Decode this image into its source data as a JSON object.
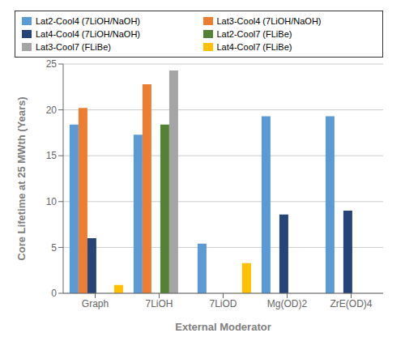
{
  "chart_data": {
    "type": "bar",
    "categories": [
      "Graph",
      "7LiOH",
      "7LiOD",
      "Mg(OD)2",
      "ZrE(OD)4"
    ],
    "series": [
      {
        "name": "Lat2-Cool4 (7LiOH/NaOH)",
        "color": "#5B9BD5",
        "values": [
          18.4,
          17.3,
          5.4,
          19.3,
          19.3
        ]
      },
      {
        "name": "Lat3-Cool4 (7LiOH/NaOH)",
        "color": "#ED7D31",
        "values": [
          20.2,
          22.8,
          null,
          null,
          null
        ]
      },
      {
        "name": "Lat4-Cool4 (7LiOH/NaOH)",
        "color": "#264478",
        "values": [
          6.0,
          null,
          null,
          8.6,
          9.0
        ]
      },
      {
        "name": "Lat2-Cool7 (FLiBe)",
        "color": "#548235",
        "values": [
          null,
          18.4,
          null,
          null,
          null
        ]
      },
      {
        "name": "Lat3-Cool7 (FLiBe)",
        "color": "#A5A5A5",
        "values": [
          null,
          24.3,
          null,
          null,
          null
        ]
      },
      {
        "name": "Lat4-Cool7 (FLiBe)",
        "color": "#FFC000",
        "values": [
          0.9,
          null,
          3.3,
          null,
          null
        ]
      }
    ],
    "xlabel": "External Moderator",
    "ylabel": "Core Lifetime at 25 MWth (Years)",
    "ylim": [
      0,
      25
    ],
    "yticks": [
      0,
      5,
      10,
      15,
      20,
      25
    ],
    "grid": true,
    "legend": "top"
  }
}
